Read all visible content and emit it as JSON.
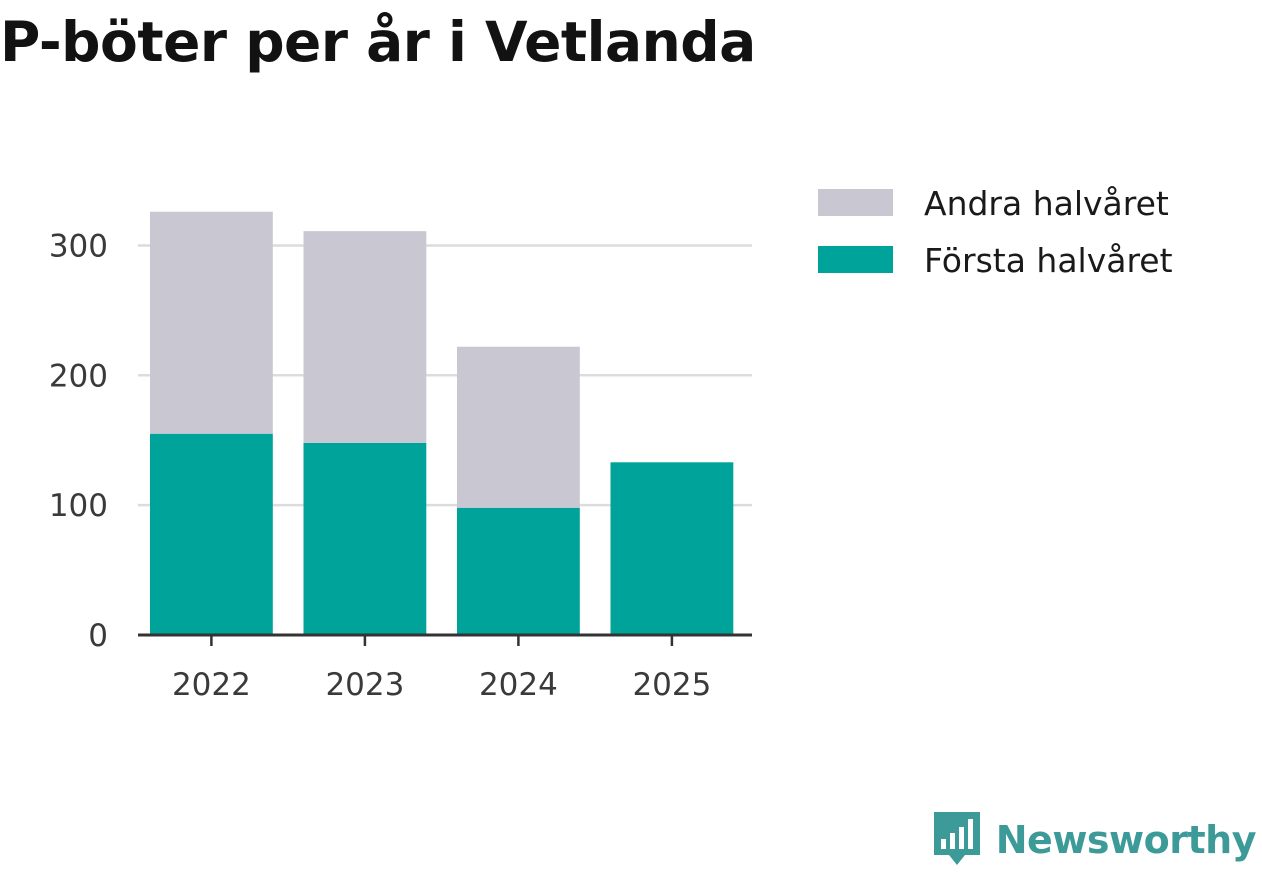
{
  "chart_data": {
    "type": "bar",
    "stacked": true,
    "title": "P-böter per år i Vetlanda",
    "categories": [
      "2022",
      "2023",
      "2024",
      "2025"
    ],
    "series": [
      {
        "name": "Första halvåret",
        "color": "#00a39a",
        "values": [
          155,
          148,
          98,
          133
        ]
      },
      {
        "name": "Andra halvåret",
        "color": "#c8c7d2",
        "values": [
          171,
          163,
          124,
          0
        ]
      }
    ],
    "legend_order": [
      "Andra halvåret",
      "Första halvåret"
    ],
    "legend_position": "right-top",
    "ylim": [
      0,
      335
    ],
    "yticks": [
      0,
      100,
      200,
      300
    ],
    "grid": true,
    "xlabel": "",
    "ylabel": ""
  },
  "branding": {
    "name": "Newsworthy",
    "icon": "newsworthy-logo-icon",
    "color": "#3c9b98"
  }
}
